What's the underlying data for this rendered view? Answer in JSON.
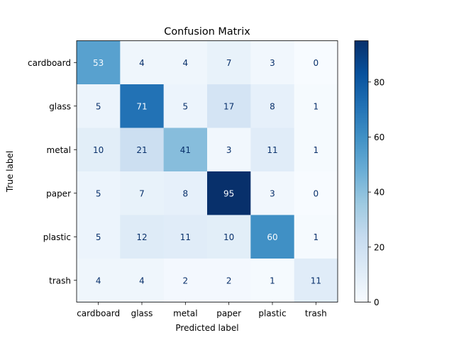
{
  "chart_data": {
    "type": "heatmap",
    "title": "Confusion Matrix",
    "xlabel": "Predicted label",
    "ylabel": "True label",
    "x_categories": [
      "cardboard",
      "glass",
      "metal",
      "paper",
      "plastic",
      "trash"
    ],
    "y_categories": [
      "cardboard",
      "glass",
      "metal",
      "paper",
      "plastic",
      "trash"
    ],
    "values": [
      [
        53,
        4,
        4,
        7,
        3,
        0
      ],
      [
        5,
        71,
        5,
        17,
        8,
        1
      ],
      [
        10,
        21,
        41,
        3,
        11,
        1
      ],
      [
        5,
        7,
        8,
        95,
        3,
        0
      ],
      [
        5,
        12,
        11,
        10,
        60,
        1
      ],
      [
        4,
        4,
        2,
        2,
        1,
        11
      ]
    ],
    "colormap": "Blues",
    "colorbar": {
      "range": [
        0,
        95
      ],
      "ticks": [
        0,
        20,
        40,
        60,
        80
      ]
    },
    "colors": {
      "low": "#f7fbff",
      "high": "#08306b",
      "text_on_light": "#08306b",
      "text_on_dark": "#f7fbff"
    }
  }
}
